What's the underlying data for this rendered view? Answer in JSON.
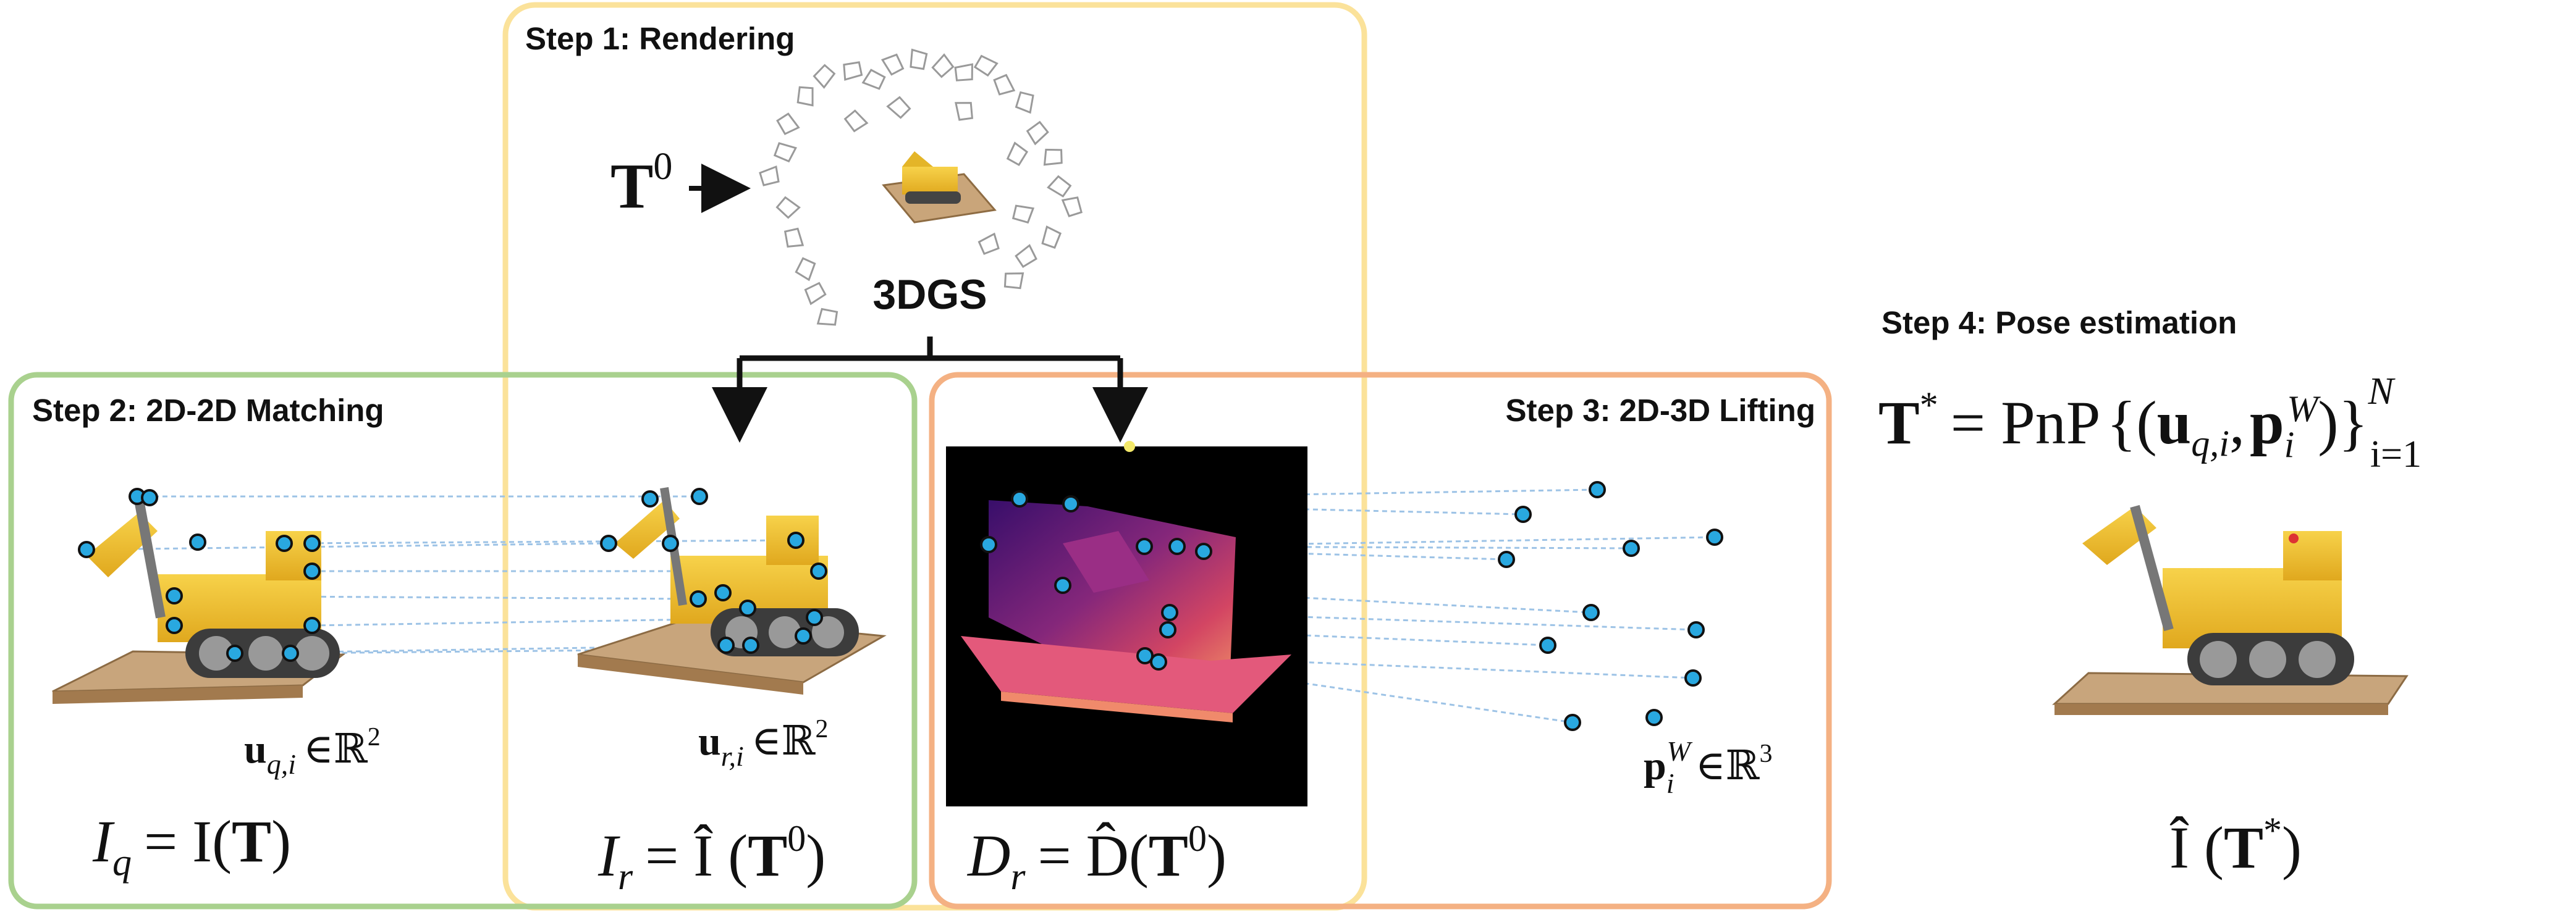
{
  "colors": {
    "step1": "#fbe29a",
    "step2": "#a9d18e",
    "step3": "#f4b183",
    "keypoint": "#29a8e0",
    "match_line": "#9dc3e6",
    "text": "#111111"
  },
  "step1": {
    "title": "Step 1: Rendering",
    "input_symbol": "T",
    "input_superscript": "0",
    "model_label": "3DGS"
  },
  "step2": {
    "title": "Step 2: 2D-2D Matching",
    "query_kp_label": {
      "bold": "u",
      "sub": "q,i",
      "set": "∈ℝ",
      "exp": "2"
    },
    "render_kp_label": {
      "bold": "u",
      "sub": "r,i",
      "set": "∈ℝ",
      "exp": "2"
    },
    "query_image_eq": {
      "lhs": "I",
      "lhs_sub": "q",
      "rhs": "= I(",
      "arg": "T",
      "close": ")"
    },
    "render_image_eq": {
      "lhs": "I",
      "lhs_sub": "r",
      "rhs": "= Î (",
      "arg": "T",
      "arg_sup": "0",
      "close": ")"
    }
  },
  "step3": {
    "title": "Step 3: 2D-3D Lifting",
    "depth_eq": {
      "lhs": "D",
      "lhs_sub": "r",
      "rhs": "= D̂(",
      "arg": "T",
      "arg_sup": "0",
      "close": ")"
    },
    "point_label": {
      "bold": "p",
      "sub": "i",
      "sup": "W",
      "set": "∈ℝ",
      "exp": "3"
    }
  },
  "step4": {
    "title": "Step 4: Pose estimation",
    "formula": {
      "lhs": "T",
      "lhs_sup": "*",
      "op": "= PnP",
      "tuple_open": "{(",
      "u": "u",
      "u_sub": "q,i",
      "comma": ",",
      "p": "p",
      "p_sub": "i",
      "p_sup": "W",
      "tuple_close": ")}",
      "upper": "N",
      "lower": "i=1"
    },
    "output_eq": {
      "lhs": "Î (",
      "arg": "T",
      "arg_sup": "*",
      "close": ")"
    }
  }
}
